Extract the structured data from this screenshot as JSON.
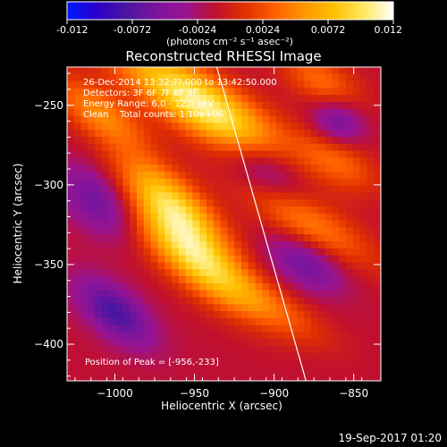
{
  "chart_data": {
    "type": "heatmap",
    "title": "Reconstructed RHESSI Image",
    "colorbar": {
      "range": [
        -0.012,
        0.012
      ],
      "tick_labels": [
        "-0.012",
        "-0.0072",
        "-0.0024",
        "0.0024",
        "0.0072",
        "0.012"
      ],
      "units_label": "(photons cm⁻² s⁻¹ asec⁻²)"
    },
    "xlabel": "Heliocentric X (arcsec)",
    "ylabel": "Heliocentric Y (arcsec)",
    "xlim": [
      -1030,
      -833
    ],
    "ylim": [
      -423,
      -226
    ],
    "x_ticks": [
      -1000,
      -950,
      -900,
      -850
    ],
    "y_ticks": [
      -250,
      -300,
      -350,
      -400
    ],
    "info_lines": [
      "26-Dec-2014 13:32:??.000 to 13:42:50.000",
      "Detectors: 3F 6F 7F 8F 9F",
      "Energy Range: 6.0 - 12.0 keV",
      "Clean    Total counts: 1.10e+06"
    ],
    "peak_label": "Position of Peak = [-956,-233]",
    "peak_position": [
      -956,
      -233
    ],
    "limb_line": [
      [
        -936,
        -226
      ],
      [
        -880,
        -423
      ]
    ],
    "blobs": [
      {
        "x": -945,
        "y": -250,
        "sx": 45,
        "sy": 13,
        "angle": -33,
        "amp": 1.0
      },
      {
        "x": -965,
        "y": -310,
        "sx": 28,
        "sy": 11,
        "angle": -40,
        "amp": 0.72
      },
      {
        "x": -950,
        "y": -345,
        "sx": 34,
        "sy": 12,
        "angle": -40,
        "amp": 0.85
      },
      {
        "x": -1010,
        "y": -255,
        "sx": 24,
        "sy": 10,
        "angle": -35,
        "amp": 0.5
      },
      {
        "x": -880,
        "y": -323,
        "sx": 35,
        "sy": 10,
        "angle": -30,
        "amp": 0.45
      },
      {
        "x": -860,
        "y": -285,
        "sx": 20,
        "sy": 10,
        "angle": -30,
        "amp": 0.35
      },
      {
        "x": -870,
        "y": -235,
        "sx": 20,
        "sy": 10,
        "angle": -30,
        "amp": 0.4
      },
      {
        "x": -900,
        "y": -378,
        "sx": 28,
        "sy": 9,
        "angle": -30,
        "amp": 0.3
      },
      {
        "x": -1000,
        "y": -380,
        "sx": 20,
        "sy": 10,
        "angle": -40,
        "amp": -0.55
      },
      {
        "x": -1010,
        "y": -310,
        "sx": 20,
        "sy": 12,
        "angle": -40,
        "amp": -0.45
      },
      {
        "x": -905,
        "y": -290,
        "sx": 20,
        "sy": 12,
        "angle": -30,
        "amp": -0.45
      },
      {
        "x": -880,
        "y": -350,
        "sx": 18,
        "sy": 10,
        "angle": -30,
        "amp": -0.4
      },
      {
        "x": -860,
        "y": -260,
        "sx": 12,
        "sy": 10,
        "angle": -30,
        "amp": -0.4
      }
    ],
    "colors": {
      "background": "#000000",
      "foreground": "#ffffff",
      "colorbar_stops": [
        "#0018ff",
        "#2a00c8",
        "#4a16a0",
        "#7c149c",
        "#9a1490",
        "#c0102e",
        "#e03000",
        "#ff6000",
        "#ff9600",
        "#ffc000",
        "#ffe860",
        "#ffffff"
      ]
    }
  },
  "footer": {
    "date": "19-Sep-2017 01:20"
  }
}
